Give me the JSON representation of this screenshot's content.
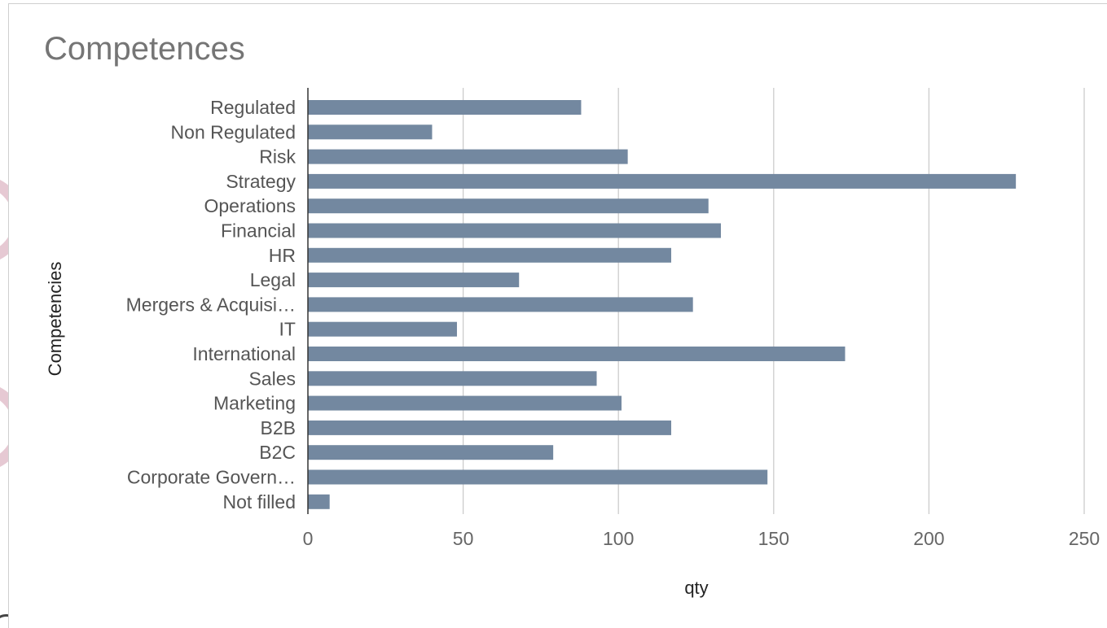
{
  "chart_data": {
    "type": "bar",
    "orientation": "horizontal",
    "title": "Competences",
    "xlabel": "qty",
    "ylabel": "Competencies",
    "categories": [
      "Regulated",
      "Non Regulated",
      "Risk",
      "Strategy",
      "Operations",
      "Financial",
      "HR",
      "Legal",
      "Mergers & Acquisi…",
      "IT",
      "International",
      "Sales",
      "Marketing",
      "B2B",
      "B2C",
      "Corporate Govern…",
      "Not filled"
    ],
    "values": [
      88,
      40,
      103,
      228,
      129,
      133,
      117,
      68,
      124,
      48,
      173,
      93,
      101,
      117,
      79,
      148,
      7
    ],
    "xlim": [
      0,
      250
    ],
    "xticks": [
      0,
      50,
      100,
      150,
      200,
      250
    ],
    "grid": true,
    "legend": "none",
    "bar_color": "#7388a0"
  }
}
